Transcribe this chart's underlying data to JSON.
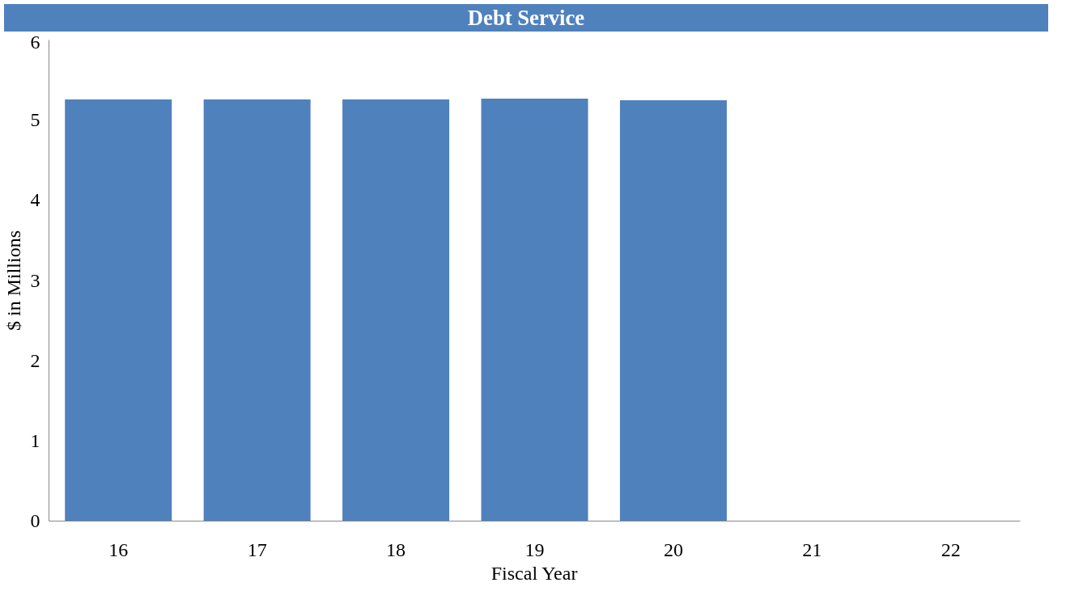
{
  "chart_data": {
    "type": "bar",
    "title": "Debt Service",
    "xlabel": "Fiscal Year",
    "ylabel": "$ in Millions",
    "categories": [
      "16",
      "17",
      "18",
      "19",
      "20",
      "21",
      "22"
    ],
    "values": [
      5.26,
      5.26,
      5.26,
      5.27,
      5.25,
      null,
      null
    ],
    "color": "#4f81bd",
    "ylim": [
      0,
      6
    ],
    "yticks": [
      0,
      1,
      2,
      3,
      4,
      5,
      6
    ],
    "grid": false
  }
}
